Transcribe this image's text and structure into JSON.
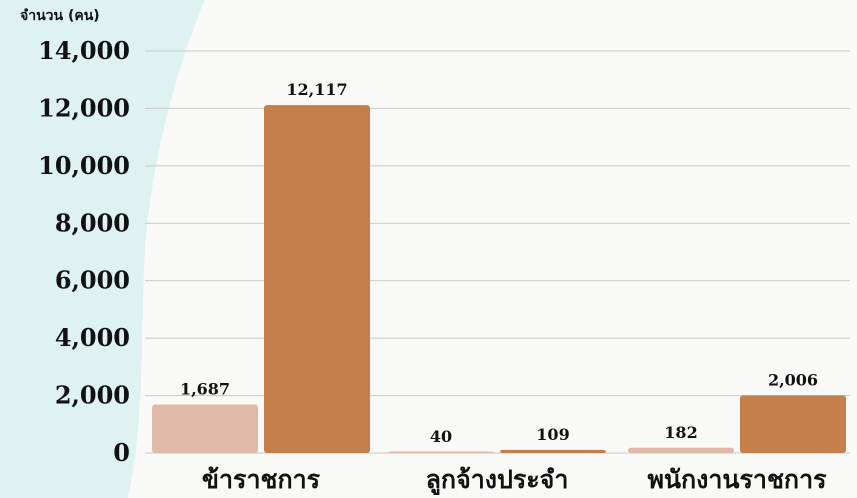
{
  "chart_data": {
    "type": "bar",
    "ylabel": "จำนวน (คน)",
    "categories": [
      "ข้าราชการ",
      "ลูกจ้างประจำ",
      "พนักงานราชการ"
    ],
    "series": [
      {
        "values": [
          1687,
          40,
          182
        ],
        "labels": [
          "1,687",
          "40",
          "182"
        ]
      },
      {
        "values": [
          12117,
          109,
          2006
        ],
        "labels": [
          "12,117",
          "109",
          "2,006"
        ]
      }
    ],
    "ylim": [
      0,
      14000
    ],
    "yticks": [
      0,
      2000,
      4000,
      6000,
      8000,
      10000,
      12000,
      14000
    ],
    "ytick_labels": [
      "0",
      "2,000",
      "4,000",
      "6,000",
      "8,000",
      "10,000",
      "12,000",
      "14,000"
    ],
    "grid": true,
    "legend": "none"
  },
  "colors": {
    "series_light": "#dfbaa8",
    "series_dark": "#c57f4b",
    "side_panel": "#def3f1",
    "grid": "#c9c9c9",
    "background": "#f9f9f8"
  }
}
